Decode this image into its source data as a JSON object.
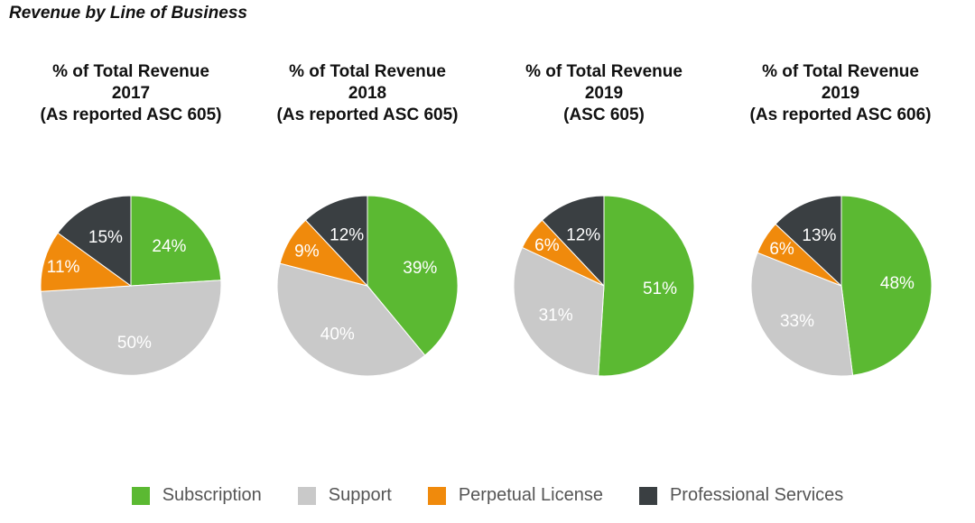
{
  "page_title": "Revenue by Line of Business",
  "chart_data": [
    {
      "type": "pie",
      "title_lines": [
        "% of Total Revenue",
        "2017",
        "(As reported ASC 605)"
      ],
      "labels": [
        "Subscription",
        "Support",
        "Perpetual License",
        "Professional Services"
      ],
      "values": [
        24,
        50,
        11,
        15
      ],
      "value_labels": [
        "24%",
        "50%",
        "11%",
        "15%"
      ]
    },
    {
      "type": "pie",
      "title_lines": [
        "% of Total Revenue",
        "2018",
        "(As reported ASC 605)"
      ],
      "labels": [
        "Subscription",
        "Support",
        "Perpetual License",
        "Professional Services"
      ],
      "values": [
        39,
        40,
        9,
        12
      ],
      "value_labels": [
        "39%",
        "40%",
        "9%",
        "12%"
      ]
    },
    {
      "type": "pie",
      "title_lines": [
        "% of Total Revenue",
        "2019",
        "(ASC 605)"
      ],
      "labels": [
        "Subscription",
        "Support",
        "Perpetual License",
        "Professional Services"
      ],
      "values": [
        51,
        31,
        6,
        12
      ],
      "value_labels": [
        "51%",
        "31%",
        "6%",
        "12%"
      ]
    },
    {
      "type": "pie",
      "title_lines": [
        "% of Total Revenue",
        "2019",
        "(As reported ASC 606)"
      ],
      "labels": [
        "Subscription",
        "Support",
        "Perpetual License",
        "Professional Services"
      ],
      "values": [
        48,
        33,
        6,
        13
      ],
      "value_labels": [
        "48%",
        "33%",
        "6%",
        "13%"
      ]
    }
  ],
  "legend": [
    {
      "label": "Subscription",
      "color": "#5BB932"
    },
    {
      "label": "Support",
      "color": "#C9C9C9"
    },
    {
      "label": "Perpetual License",
      "color": "#F08A0C"
    },
    {
      "label": "Professional Services",
      "color": "#3A3F42"
    }
  ]
}
